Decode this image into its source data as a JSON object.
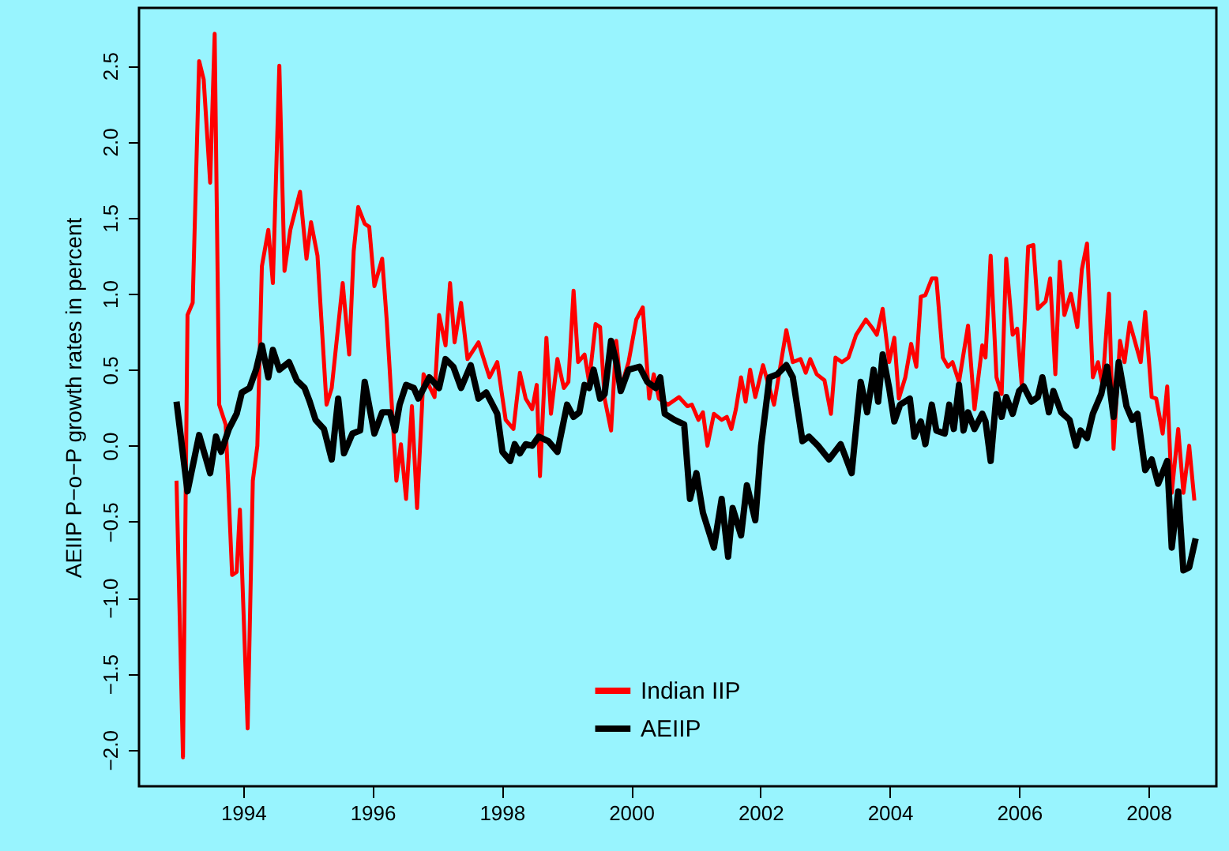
{
  "chart_data": {
    "type": "line",
    "ylabel": "AEIIP P−o−P growth rates in percent",
    "xlim": [
      1992.39,
      2009.05
    ],
    "ylim": [
      -2.24,
      2.88
    ],
    "xticks": [
      1994,
      1996,
      1998,
      2000,
      2002,
      2004,
      2006,
      2008
    ],
    "yticks": [
      {
        "value": -2.0,
        "label": "−2.0"
      },
      {
        "value": -1.5,
        "label": "−1.5"
      },
      {
        "value": -1.0,
        "label": "−1.0"
      },
      {
        "value": -0.5,
        "label": "−0.5"
      },
      {
        "value": 0,
        "label": "0.0"
      },
      {
        "value": 0.5,
        "label": "0.5"
      },
      {
        "value": 1.0,
        "label": "1.0"
      },
      {
        "value": 1.5,
        "label": "1.5"
      },
      {
        "value": 2.0,
        "label": "2.0"
      },
      {
        "value": 2.5,
        "label": "2.5"
      }
    ],
    "grid": false,
    "legend": "bottom",
    "marker": "none",
    "line_style": "solid",
    "series": [
      {
        "name": "Indian IIP",
        "color": "#ff0000",
        "x": [
          1992.97,
          1993.07,
          1993.14,
          1993.22,
          1993.32,
          1993.39,
          1993.49,
          1993.56,
          1993.63,
          1993.73,
          1993.83,
          1993.9,
          1993.95,
          1994.07,
          1994.15,
          1994.22,
          1994.29,
          1994.39,
          1994.46,
          1994.56,
          1994.64,
          1994.73,
          1994.88,
          1994.98,
          1995.05,
          1995.15,
          1995.29,
          1995.37,
          1995.54,
          1995.64,
          1995.71,
          1995.78,
          1995.88,
          1995.95,
          1996.03,
          1996.15,
          1996.22,
          1996.37,
          1996.44,
          1996.52,
          1996.61,
          1996.69,
          1996.79,
          1996.96,
          1997.03,
          1997.13,
          1997.2,
          1997.27,
          1997.37,
          1997.47,
          1997.64,
          1997.81,
          1997.93,
          1998.06,
          1998.18,
          1998.28,
          1998.37,
          1998.47,
          1998.54,
          1998.59,
          1998.69,
          1998.76,
          1998.86,
          1998.96,
          1999.03,
          1999.11,
          1999.18,
          1999.28,
          1999.35,
          1999.45,
          1999.52,
          1999.59,
          1999.69,
          1999.77,
          1999.84,
          1999.96,
          2000.08,
          2000.18,
          2000.28,
          2000.35,
          2000.43,
          2000.57,
          2000.74,
          2000.87,
          2000.94,
          2001.04,
          2001.11,
          2001.18,
          2001.28,
          2001.4,
          2001.48,
          2001.55,
          2001.62,
          2001.7,
          2001.77,
          2001.84,
          2001.92,
          2002.04,
          2002.21,
          2002.33,
          2002.4,
          2002.5,
          2002.62,
          2002.7,
          2002.77,
          2002.87,
          2002.99,
          2003.09,
          2003.16,
          2003.26,
          2003.36,
          2003.48,
          2003.63,
          2003.72,
          2003.8,
          2003.89,
          2003.99,
          2004.07,
          2004.14,
          2004.24,
          2004.33,
          2004.41,
          2004.48,
          2004.55,
          2004.65,
          2004.72,
          2004.82,
          2004.9,
          2004.97,
          2005.07,
          2005.21,
          2005.31,
          2005.43,
          2005.48,
          2005.56,
          2005.65,
          2005.73,
          2005.8,
          2005.9,
          2005.97,
          2006.04,
          2006.14,
          2006.22,
          2006.29,
          2006.41,
          2006.48,
          2006.56,
          2006.63,
          2006.7,
          2006.8,
          2006.9,
          2006.97,
          2007.05,
          2007.14,
          2007.22,
          2007.29,
          2007.39,
          2007.46,
          2007.56,
          2007.63,
          2007.71,
          2007.88,
          2007.95,
          2008.05,
          2008.12,
          2008.22,
          2008.29,
          2008.36,
          2008.46,
          2008.54,
          2008.63,
          2008.71
        ],
        "values": [
          -0.23,
          -2.05,
          0.86,
          0.94,
          2.53,
          2.41,
          1.73,
          2.71,
          0.27,
          0.14,
          -0.85,
          -0.83,
          -0.42,
          -1.86,
          -0.23,
          0.0,
          1.18,
          1.42,
          1.07,
          2.5,
          1.15,
          1.42,
          1.67,
          1.23,
          1.47,
          1.25,
          0.27,
          0.38,
          1.07,
          0.6,
          1.28,
          1.57,
          1.46,
          1.44,
          1.05,
          1.23,
          0.83,
          -0.23,
          0.01,
          -0.35,
          0.26,
          -0.41,
          0.47,
          0.32,
          0.86,
          0.66,
          1.07,
          0.68,
          0.94,
          0.57,
          0.68,
          0.45,
          0.55,
          0.17,
          0.11,
          0.48,
          0.31,
          0.24,
          0.4,
          -0.2,
          0.71,
          0.21,
          0.57,
          0.38,
          0.42,
          1.02,
          0.55,
          0.6,
          0.42,
          0.8,
          0.78,
          0.31,
          0.1,
          0.69,
          0.38,
          0.55,
          0.83,
          0.91,
          0.31,
          0.47,
          0.31,
          0.27,
          0.32,
          0.26,
          0.27,
          0.17,
          0.22,
          0.0,
          0.21,
          0.17,
          0.19,
          0.11,
          0.24,
          0.45,
          0.29,
          0.5,
          0.32,
          0.53,
          0.27,
          0.58,
          0.76,
          0.55,
          0.57,
          0.48,
          0.57,
          0.47,
          0.43,
          0.21,
          0.58,
          0.55,
          0.58,
          0.73,
          0.83,
          0.78,
          0.73,
          0.9,
          0.55,
          0.71,
          0.31,
          0.45,
          0.67,
          0.52,
          0.98,
          0.99,
          1.1,
          1.1,
          0.58,
          0.52,
          0.55,
          0.42,
          0.79,
          0.24,
          0.66,
          0.58,
          1.25,
          0.45,
          0.34,
          1.23,
          0.73,
          0.77,
          0.4,
          1.31,
          1.32,
          0.9,
          0.95,
          1.1,
          0.47,
          1.21,
          0.86,
          1.0,
          0.78,
          1.16,
          1.33,
          0.45,
          0.55,
          0.4,
          1.0,
          -0.02,
          0.69,
          0.55,
          0.81,
          0.55,
          0.88,
          0.32,
          0.31,
          0.08,
          0.39,
          -0.31,
          0.11,
          -0.31,
          0.0,
          -0.36
        ]
      },
      {
        "name": "AEIIP",
        "color": "#000000",
        "x": [
          1992.97,
          1993.14,
          1993.32,
          1993.49,
          1993.58,
          1993.66,
          1993.78,
          1993.9,
          1993.98,
          1994.1,
          1994.2,
          1994.29,
          1994.39,
          1994.46,
          1994.56,
          1994.71,
          1994.83,
          1994.95,
          1995.03,
          1995.12,
          1995.25,
          1995.37,
          1995.47,
          1995.56,
          1995.69,
          1995.81,
          1995.88,
          1996.03,
          1996.15,
          1996.27,
          1996.35,
          1996.42,
          1996.52,
          1996.64,
          1996.71,
          1996.88,
          1997.03,
          1997.13,
          1997.25,
          1997.37,
          1997.52,
          1997.64,
          1997.76,
          1997.93,
          1998.01,
          1998.13,
          1998.2,
          1998.28,
          1998.37,
          1998.47,
          1998.57,
          1998.72,
          1998.86,
          1999.01,
          1999.11,
          1999.2,
          1999.28,
          1999.35,
          1999.42,
          1999.52,
          1999.59,
          1999.69,
          1999.77,
          1999.84,
          1999.96,
          2000.13,
          2000.25,
          2000.38,
          2000.45,
          2000.52,
          2000.67,
          2000.82,
          2000.91,
          2001.01,
          2001.11,
          2001.28,
          2001.4,
          2001.5,
          2001.57,
          2001.7,
          2001.79,
          2001.92,
          2002.01,
          2002.14,
          2002.26,
          2002.4,
          2002.5,
          2002.65,
          2002.75,
          2002.89,
          2003.06,
          2003.24,
          2003.41,
          2003.55,
          2003.65,
          2003.75,
          2003.82,
          2003.89,
          2003.99,
          2004.07,
          2004.16,
          2004.31,
          2004.38,
          2004.48,
          2004.55,
          2004.65,
          2004.72,
          2004.85,
          2004.92,
          2004.99,
          2005.07,
          2005.14,
          2005.21,
          2005.31,
          2005.43,
          2005.48,
          2005.56,
          2005.65,
          2005.73,
          2005.8,
          2005.9,
          2006.0,
          2006.07,
          2006.19,
          2006.29,
          2006.36,
          2006.46,
          2006.53,
          2006.65,
          2006.78,
          2006.88,
          2006.95,
          2007.05,
          2007.14,
          2007.27,
          2007.36,
          2007.46,
          2007.54,
          2007.66,
          2007.75,
          2007.83,
          2007.95,
          2008.05,
          2008.15,
          2008.29,
          2008.36,
          2008.46,
          2008.54,
          2008.63,
          2008.73
        ],
        "values": [
          0.29,
          -0.3,
          0.07,
          -0.18,
          0.06,
          -0.04,
          0.11,
          0.21,
          0.35,
          0.38,
          0.5,
          0.66,
          0.45,
          0.63,
          0.5,
          0.55,
          0.43,
          0.38,
          0.29,
          0.17,
          0.11,
          -0.09,
          0.31,
          -0.05,
          0.08,
          0.1,
          0.42,
          0.08,
          0.22,
          0.22,
          0.1,
          0.27,
          0.4,
          0.38,
          0.31,
          0.45,
          0.38,
          0.57,
          0.52,
          0.38,
          0.53,
          0.31,
          0.35,
          0.21,
          -0.04,
          -0.1,
          0.01,
          -0.05,
          0.01,
          0.0,
          0.06,
          0.03,
          -0.04,
          0.27,
          0.19,
          0.22,
          0.4,
          0.38,
          0.5,
          0.31,
          0.34,
          0.69,
          0.55,
          0.36,
          0.5,
          0.52,
          0.42,
          0.38,
          0.45,
          0.21,
          0.17,
          0.14,
          -0.35,
          -0.18,
          -0.44,
          -0.67,
          -0.35,
          -0.73,
          -0.41,
          -0.59,
          -0.26,
          -0.49,
          0.0,
          0.45,
          0.47,
          0.53,
          0.45,
          0.03,
          0.06,
          0.0,
          -0.09,
          0.01,
          -0.18,
          0.42,
          0.22,
          0.5,
          0.29,
          0.6,
          0.38,
          0.16,
          0.27,
          0.31,
          0.06,
          0.16,
          0.01,
          0.27,
          0.1,
          0.08,
          0.27,
          0.11,
          0.4,
          0.1,
          0.22,
          0.11,
          0.21,
          0.16,
          -0.1,
          0.34,
          0.19,
          0.32,
          0.21,
          0.36,
          0.39,
          0.29,
          0.32,
          0.45,
          0.22,
          0.36,
          0.22,
          0.17,
          0.0,
          0.1,
          0.05,
          0.21,
          0.34,
          0.52,
          0.19,
          0.55,
          0.26,
          0.17,
          0.21,
          -0.16,
          -0.09,
          -0.25,
          -0.1,
          -0.67,
          -0.3,
          -0.82,
          -0.8,
          -0.61
        ]
      }
    ]
  }
}
